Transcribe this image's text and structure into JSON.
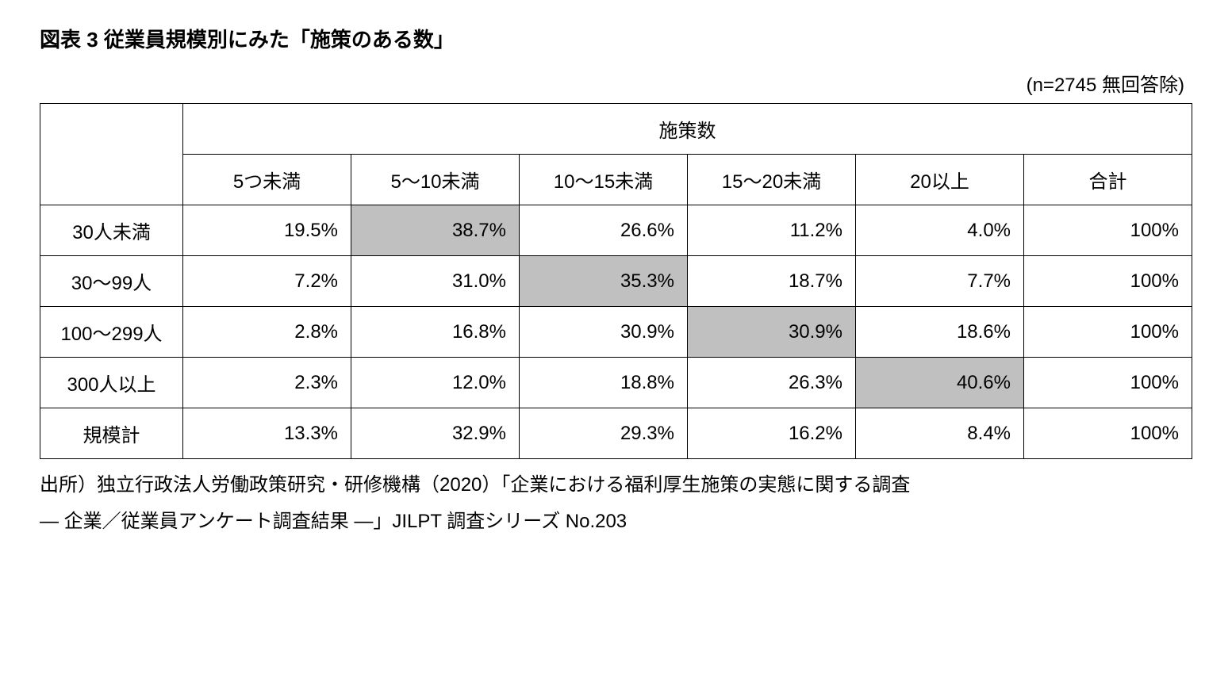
{
  "title": "図表 3 従業員規模別にみた「施策のある数」",
  "sample_note": "(n=2745 無回答除)",
  "table": {
    "group_header": "施策数",
    "columns": [
      "5つ未満",
      "5～10未満",
      "10～15未満",
      "15～20未満",
      "20以上",
      "合計"
    ],
    "row_labels": [
      "30人未満",
      "30～99人",
      "100～299人",
      "300人以上",
      "規模計"
    ],
    "rows": [
      [
        "19.5%",
        "38.7%",
        "26.6%",
        "11.2%",
        "4.0%",
        "100%"
      ],
      [
        "7.2%",
        "31.0%",
        "35.3%",
        "18.7%",
        "7.7%",
        "100%"
      ],
      [
        "2.8%",
        "16.8%",
        "30.9%",
        "30.9%",
        "18.6%",
        "100%"
      ],
      [
        "2.3%",
        "12.0%",
        "18.8%",
        "26.3%",
        "40.6%",
        "100%"
      ],
      [
        "13.3%",
        "32.9%",
        "29.3%",
        "16.2%",
        "8.4%",
        "100%"
      ]
    ],
    "highlighted_cells": [
      {
        "row": 0,
        "col": 1
      },
      {
        "row": 1,
        "col": 2
      },
      {
        "row": 2,
        "col": 3
      },
      {
        "row": 3,
        "col": 4
      }
    ],
    "highlight_color": "#c0c0c0",
    "border_color": "#000000",
    "background_color": "#ffffff",
    "font_size": 24
  },
  "source_line1": "出所）独立行政法人労働政策研究・研修機構（2020）「企業における福利厚生施策の実態に関する調査",
  "source_line2": "― 企業／従業員アンケート調査結果 ―」JILPT 調査シリーズ No.203"
}
